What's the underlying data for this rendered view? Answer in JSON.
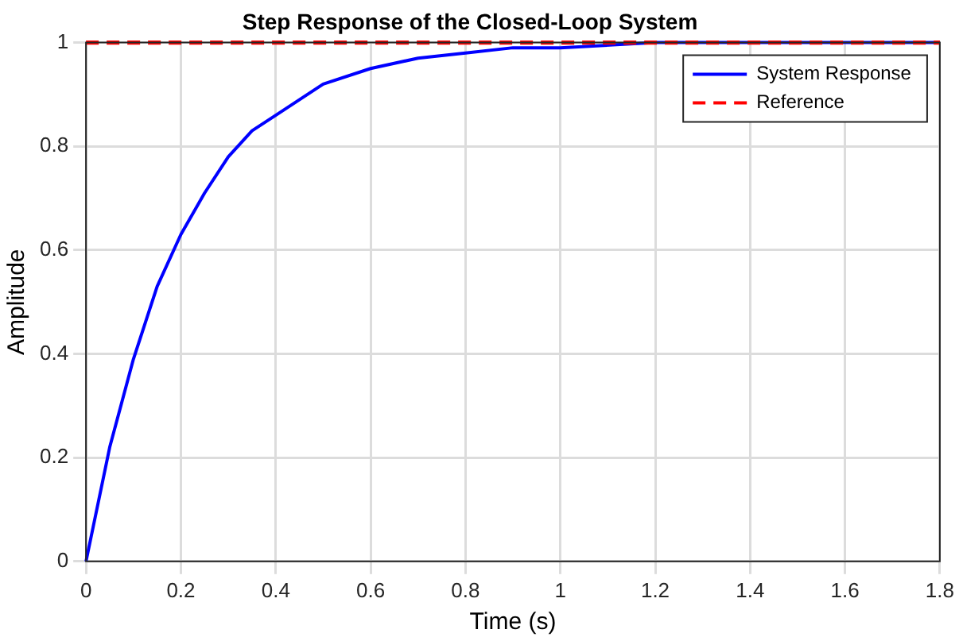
{
  "chart_data": {
    "type": "line",
    "title": "Step Response of the Closed-Loop System",
    "xlabel": "Time (s)",
    "ylabel": "Amplitude",
    "x": [
      0,
      0.05,
      0.1,
      0.15,
      0.2,
      0.25,
      0.3,
      0.35,
      0.4,
      0.5,
      0.6,
      0.7,
      0.8,
      0.9,
      1.0,
      1.2,
      1.4,
      1.6,
      1.8
    ],
    "series": [
      {
        "name": "System Response",
        "color": "#0000ff",
        "line_style": "solid",
        "values": [
          0,
          0.22,
          0.39,
          0.53,
          0.63,
          0.71,
          0.78,
          0.83,
          0.86,
          0.92,
          0.95,
          0.97,
          0.98,
          0.99,
          0.99,
          1.0,
          1.0,
          1.0,
          1.0
        ]
      },
      {
        "name": "Reference",
        "color": "#ff0000",
        "line_style": "dashed",
        "x": [
          0,
          1.8
        ],
        "values": [
          1,
          1
        ]
      }
    ],
    "xlim": [
      0,
      1.8
    ],
    "xticks": [
      0,
      0.2,
      0.4,
      0.6,
      0.8,
      1,
      1.2,
      1.4,
      1.6,
      1.8
    ],
    "ylim": [
      0,
      1
    ],
    "yticks": [
      0,
      0.2,
      0.4,
      0.6,
      0.8,
      1
    ],
    "grid": true,
    "legend": "top right",
    "marker": "none"
  }
}
